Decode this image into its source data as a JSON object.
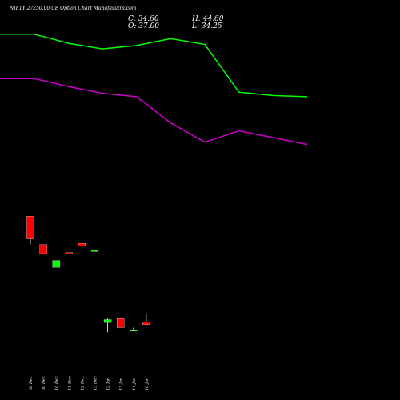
{
  "header": {
    "title": "NIFTY 27250.00  CE Option  Chart Munafasutra.com",
    "c_text": "C: 34.60",
    "o_text": "O: 37.00",
    "h_text": "H: 44.60",
    "l_text": "L: 34.25"
  },
  "colors": {
    "background": "#000000",
    "up": "#00ff00",
    "down": "#ff0000",
    "line_upper": "#00ff00",
    "line_lower": "#cc00cc",
    "text": "#ffffff"
  },
  "chart_data": {
    "type": "candlestick",
    "title": "NIFTY 27250.00  CE Option  Chart Munafasutra.com",
    "categories": [
      "08 Dec",
      "09 Dec",
      "10 Dec",
      "11 Dec",
      "12 Dec",
      "15 Dec",
      "12 Jan",
      "13 Jan",
      "14 Jan",
      "16 Jan"
    ],
    "candles": [
      {
        "date": "08 Dec",
        "open": 130,
        "high": 130,
        "low": 105,
        "close": 110,
        "direction": "down"
      },
      {
        "date": "09 Dec",
        "open": 105,
        "high": 105,
        "low": 97,
        "close": 97,
        "direction": "down"
      },
      {
        "date": "10 Dec",
        "open": 85,
        "high": 91,
        "low": 85,
        "close": 91,
        "direction": "up"
      },
      {
        "date": "11 Dec",
        "open": 98,
        "high": 98,
        "low": 97,
        "close": 97,
        "direction": "down"
      },
      {
        "date": "12 Dec",
        "open": 106,
        "high": 106,
        "low": 104,
        "close": 104,
        "direction": "down"
      },
      {
        "date": "15 Dec",
        "open": 99,
        "high": 100,
        "low": 99,
        "close": 100,
        "direction": "up"
      },
      {
        "date": "12 Jan",
        "open": 36.5,
        "high": 40,
        "low": 28,
        "close": 39,
        "direction": "up"
      },
      {
        "date": "13 Jan",
        "open": 40,
        "high": 40,
        "low": 32,
        "close": 32,
        "direction": "down"
      },
      {
        "date": "14 Jan",
        "open": 30,
        "high": 32,
        "low": 30,
        "close": 30,
        "direction": "up"
      },
      {
        "date": "16 Jan",
        "open": 37,
        "high": 44.6,
        "low": 34.25,
        "close": 34.6,
        "direction": "down"
      }
    ],
    "series": [
      {
        "color": "#00ff00",
        "x": [
          0,
          1,
          2,
          3,
          4,
          5,
          6,
          7,
          8,
          9
        ],
        "values": [
          290,
          290,
          282,
          277,
          280,
          286,
          281,
          239,
          236,
          235
        ]
      },
      {
        "color": "#cc00cc",
        "x": [
          0,
          1,
          2,
          3,
          4,
          5,
          6,
          7,
          8,
          9
        ],
        "values": [
          251,
          251,
          244,
          238,
          235,
          212,
          195,
          205,
          199,
          193
        ]
      }
    ],
    "ylim": [
      0,
      320
    ],
    "grid": false,
    "legend": false
  }
}
